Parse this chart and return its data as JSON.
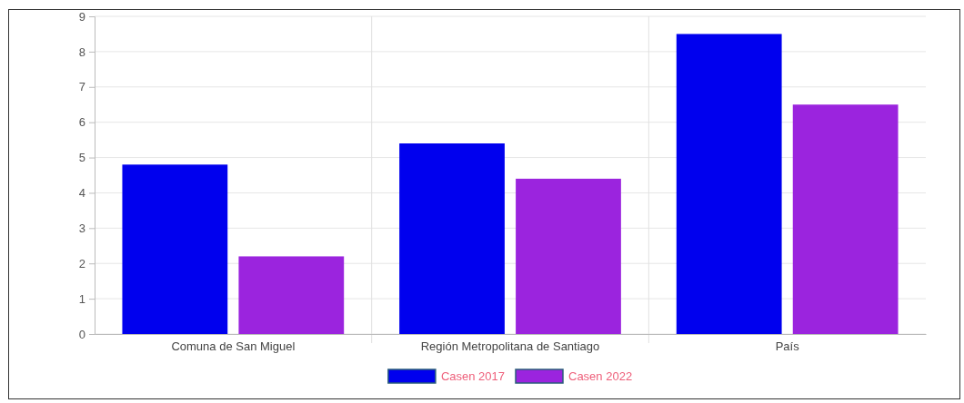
{
  "chart_data": {
    "type": "bar",
    "categories": [
      "Comuna de San Miguel",
      "Región Metropolitana de Santiago",
      "País"
    ],
    "series": [
      {
        "name": "Casen 2017",
        "color": "#0000ee",
        "values": [
          4.8,
          5.4,
          8.5
        ]
      },
      {
        "name": "Casen 2022",
        "color": "#9b24de",
        "values": [
          2.2,
          4.4,
          6.5
        ]
      }
    ],
    "ylim": [
      0,
      9
    ],
    "yticks": [
      0,
      1,
      2,
      3,
      4,
      5,
      6,
      7,
      8,
      9
    ],
    "grid": true,
    "legend": "bottom"
  }
}
